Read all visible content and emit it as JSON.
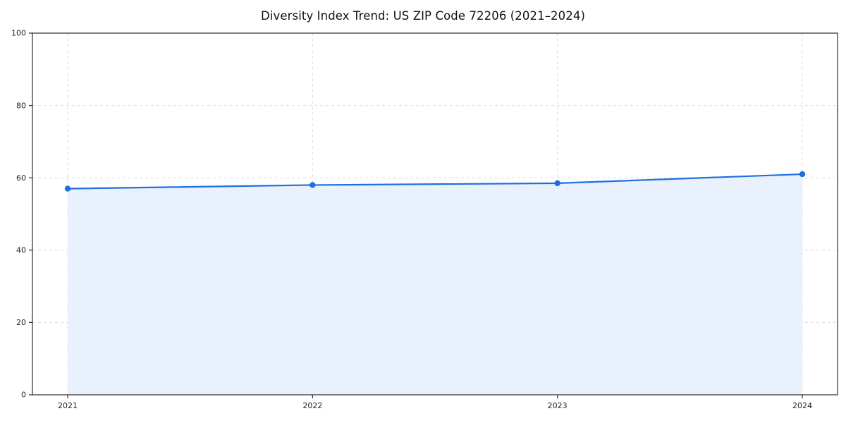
{
  "figure": {
    "title": "Diversity Index Trend: US ZIP Code 72206 (2021–2024)"
  },
  "chart_data": {
    "type": "line",
    "title": "Diversity Index Trend: US ZIP Code 72206 (2021–2024)",
    "categories": [
      "2021",
      "2022",
      "2023",
      "2024"
    ],
    "series": [
      {
        "name": "Diversity Index",
        "values": [
          57,
          58,
          58.5,
          61
        ]
      }
    ],
    "xlabel": "",
    "ylabel": "",
    "ylim": [
      0,
      100
    ],
    "yticks": [
      0,
      20,
      40,
      60,
      80,
      100
    ],
    "grid": true,
    "grid_style": "dashed",
    "legend": false,
    "area_fill": true,
    "colors": {
      "line": "#1f6fe0",
      "marker": "#1f6fe0",
      "fill": "#e9f1fd",
      "grid": "#dcdcdc",
      "axis": "#2b2b2b",
      "tick_label": "#222222"
    }
  }
}
